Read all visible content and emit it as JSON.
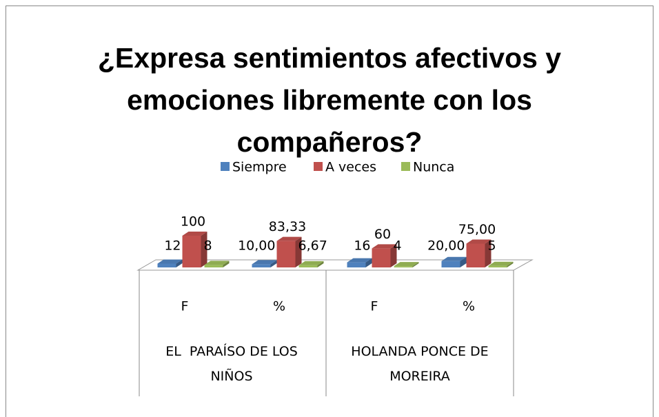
{
  "chart_data": {
    "type": "bar3d",
    "title": "¿Expresa sentimientos afectivos y emociones libremente con los compañeros?",
    "categories": [
      "F",
      "%",
      "F",
      "%"
    ],
    "category_groups": [
      "EL  PARAÍSO DE LOS NIÑOS",
      "HOLANDA PONCE DE MOREIRA"
    ],
    "legend": "top",
    "series": [
      {
        "name": "Siempre",
        "color": "#4f81bd",
        "values": [
          12,
          10.0,
          16,
          20.0
        ],
        "value_labels": [
          "12",
          "10,00",
          "16",
          "20,00"
        ]
      },
      {
        "name": "A veces",
        "color": "#c0504d",
        "values": [
          100,
          83.33,
          60,
          75.0
        ],
        "value_labels": [
          "100",
          "83,33",
          "60",
          "75,00"
        ]
      },
      {
        "name": "Nunca",
        "color": "#9bbb59",
        "values": [
          8,
          6.67,
          4,
          5
        ],
        "value_labels": [
          "8",
          "6,67",
          "4",
          "5"
        ]
      }
    ]
  }
}
